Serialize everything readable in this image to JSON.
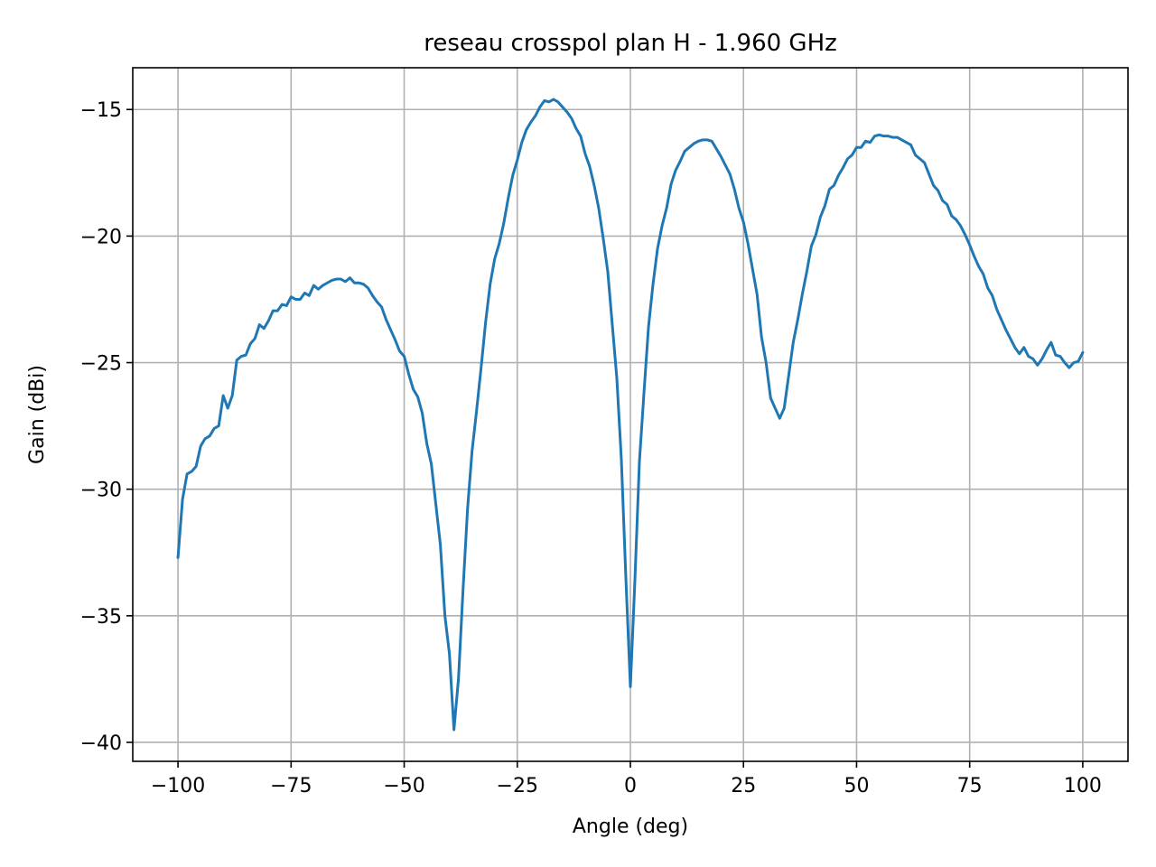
{
  "chart_data": {
    "type": "line",
    "title": "reseau crosspol plan H - 1.960 GHz",
    "xlabel": "Angle (deg)",
    "ylabel": "Gain (dBi)",
    "xlim": [
      -110,
      110
    ],
    "ylim": [
      -40.75,
      -13.35
    ],
    "xticks": [
      -100,
      -75,
      -50,
      -25,
      0,
      25,
      50,
      75,
      100
    ],
    "xtick_labels": [
      "−100",
      "−75",
      "−50",
      "−25",
      "0",
      "25",
      "50",
      "75",
      "100"
    ],
    "yticks": [
      -15,
      -20,
      -25,
      -30,
      -35,
      -40
    ],
    "ytick_labels": [
      "−15",
      "−20",
      "−25",
      "−30",
      "−35",
      "−40"
    ],
    "grid": true,
    "legend": "none",
    "series": [
      {
        "color": "#1f77b4",
        "x": [
          -100,
          -99,
          -98,
          -97,
          -96,
          -95,
          -94,
          -93,
          -92,
          -91,
          -90,
          -89,
          -88,
          -87,
          -86,
          -85,
          -84,
          -83,
          -82,
          -81,
          -80,
          -79,
          -78,
          -77,
          -76,
          -75,
          -74,
          -73,
          -72,
          -71,
          -70,
          -69,
          -68,
          -67,
          -66,
          -65,
          -64,
          -63,
          -62,
          -61,
          -60,
          -59,
          -58,
          -57,
          -56,
          -55,
          -54,
          -53,
          -52,
          -51,
          -50,
          -49,
          -48,
          -47,
          -46,
          -45,
          -44,
          -43,
          -42,
          -41,
          -40,
          -39,
          -38,
          -37,
          -36,
          -35,
          -34,
          -33,
          -32,
          -31,
          -30,
          -29,
          -28,
          -27,
          -26,
          -25,
          -24,
          -23,
          -22,
          -21,
          -20,
          -19,
          -18,
          -17,
          -16,
          -15,
          -14,
          -13,
          -12,
          -11,
          -10,
          -9,
          -8,
          -7,
          -6,
          -5,
          -4,
          -3,
          -2,
          -1,
          0,
          1,
          2,
          3,
          4,
          5,
          6,
          7,
          8,
          9,
          10,
          11,
          12,
          13,
          14,
          15,
          16,
          17,
          18,
          19,
          20,
          21,
          22,
          23,
          24,
          25,
          26,
          27,
          28,
          29,
          30,
          31,
          32,
          33,
          34,
          35,
          36,
          37,
          38,
          39,
          40,
          41,
          42,
          43,
          44,
          45,
          46,
          47,
          48,
          49,
          50,
          51,
          52,
          53,
          54,
          55,
          56,
          57,
          58,
          59,
          60,
          61,
          62,
          63,
          64,
          65,
          66,
          67,
          68,
          69,
          70,
          71,
          72,
          73,
          74,
          75,
          76,
          77,
          78,
          79,
          80,
          81,
          82,
          83,
          84,
          85,
          86,
          87,
          88,
          89,
          90,
          91,
          92,
          93,
          94,
          95,
          96,
          97,
          98,
          99,
          100
        ],
        "y": [
          -32.7,
          -30.4,
          -29.4,
          -29.3,
          -29.1,
          -28.3,
          -28.0,
          -27.9,
          -27.6,
          -27.5,
          -26.3,
          -26.8,
          -26.3,
          -24.9,
          -24.75,
          -24.7,
          -24.25,
          -24.05,
          -23.5,
          -23.65,
          -23.35,
          -22.95,
          -22.95,
          -22.7,
          -22.75,
          -22.4,
          -22.5,
          -22.5,
          -22.25,
          -22.35,
          -21.95,
          -22.1,
          -21.95,
          -21.85,
          -21.75,
          -21.7,
          -21.7,
          -21.8,
          -21.65,
          -21.85,
          -21.85,
          -21.9,
          -22.05,
          -22.35,
          -22.6,
          -22.8,
          -23.3,
          -23.7,
          -24.1,
          -24.55,
          -24.75,
          -25.45,
          -26.05,
          -26.35,
          -27.0,
          -28.2,
          -29.0,
          -30.6,
          -32.2,
          -35.0,
          -36.5,
          -39.5,
          -37.5,
          -34.0,
          -30.8,
          -28.5,
          -26.9,
          -25.2,
          -23.4,
          -21.9,
          -20.9,
          -20.3,
          -19.5,
          -18.5,
          -17.6,
          -17.0,
          -16.3,
          -15.8,
          -15.5,
          -15.25,
          -14.9,
          -14.65,
          -14.7,
          -14.6,
          -14.7,
          -14.9,
          -15.1,
          -15.35,
          -15.75,
          -16.05,
          -16.75,
          -17.25,
          -18.0,
          -18.9,
          -20.1,
          -21.4,
          -23.5,
          -25.6,
          -28.8,
          -33.5,
          -37.8,
          -33.6,
          -28.9,
          -26.2,
          -23.6,
          -21.9,
          -20.5,
          -19.6,
          -18.9,
          -17.95,
          -17.4,
          -17.05,
          -16.65,
          -16.5,
          -16.35,
          -16.25,
          -16.2,
          -16.2,
          -16.25,
          -16.55,
          -16.85,
          -17.2,
          -17.55,
          -18.15,
          -18.9,
          -19.45,
          -20.3,
          -21.3,
          -22.3,
          -24.0,
          -25.0,
          -26.4,
          -26.8,
          -27.2,
          -26.8,
          -25.5,
          -24.2,
          -23.3,
          -22.3,
          -21.4,
          -20.4,
          -19.95,
          -19.25,
          -18.8,
          -18.15,
          -18.0,
          -17.6,
          -17.3,
          -16.95,
          -16.8,
          -16.5,
          -16.5,
          -16.25,
          -16.3,
          -16.05,
          -16.0,
          -16.05,
          -16.05,
          -16.1,
          -16.1,
          -16.2,
          -16.3,
          -16.4,
          -16.8,
          -16.95,
          -17.1,
          -17.55,
          -18.0,
          -18.2,
          -18.6,
          -18.75,
          -19.2,
          -19.35,
          -19.6,
          -19.95,
          -20.35,
          -20.8,
          -21.2,
          -21.5,
          -22.05,
          -22.35,
          -22.9,
          -23.3,
          -23.7,
          -24.05,
          -24.4,
          -24.65,
          -24.4,
          -24.75,
          -24.85,
          -25.1,
          -24.85,
          -24.5,
          -24.2,
          -24.7,
          -24.75,
          -25.0,
          -25.2,
          -25.0,
          -24.95,
          -24.6
        ]
      }
    ]
  }
}
